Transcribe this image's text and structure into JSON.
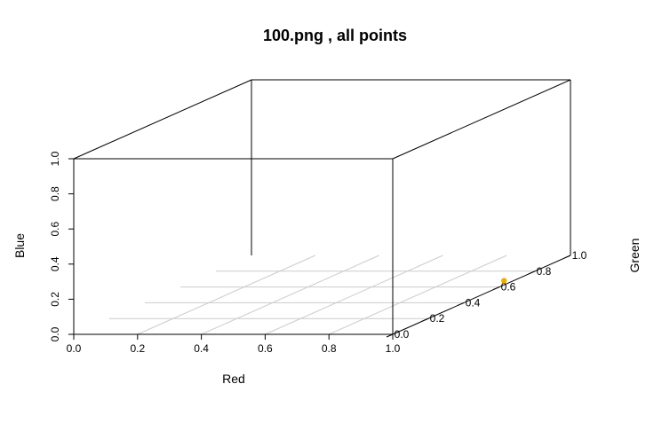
{
  "chart_data": {
    "type": "scatter",
    "title": "100.png , all points",
    "xlabel": "Red",
    "ylabel": "Green",
    "zlabel": "Blue",
    "xlim": [
      0,
      1
    ],
    "ylim": [
      0,
      1
    ],
    "zlim": [
      0,
      1
    ],
    "x_ticks": [
      "0.0",
      "0.2",
      "0.4",
      "0.6",
      "0.8",
      "1.0"
    ],
    "y_ticks": [
      "0.0",
      "0.2",
      "0.4",
      "0.6",
      "0.8",
      "1.0"
    ],
    "z_ticks": [
      "0.0",
      "0.2",
      "0.4",
      "0.6",
      "0.8",
      "1.0"
    ],
    "grid": true,
    "points": [
      {
        "x": 0.97,
        "y": 0.68,
        "z": 0.0,
        "color": "#E8B000"
      }
    ]
  }
}
